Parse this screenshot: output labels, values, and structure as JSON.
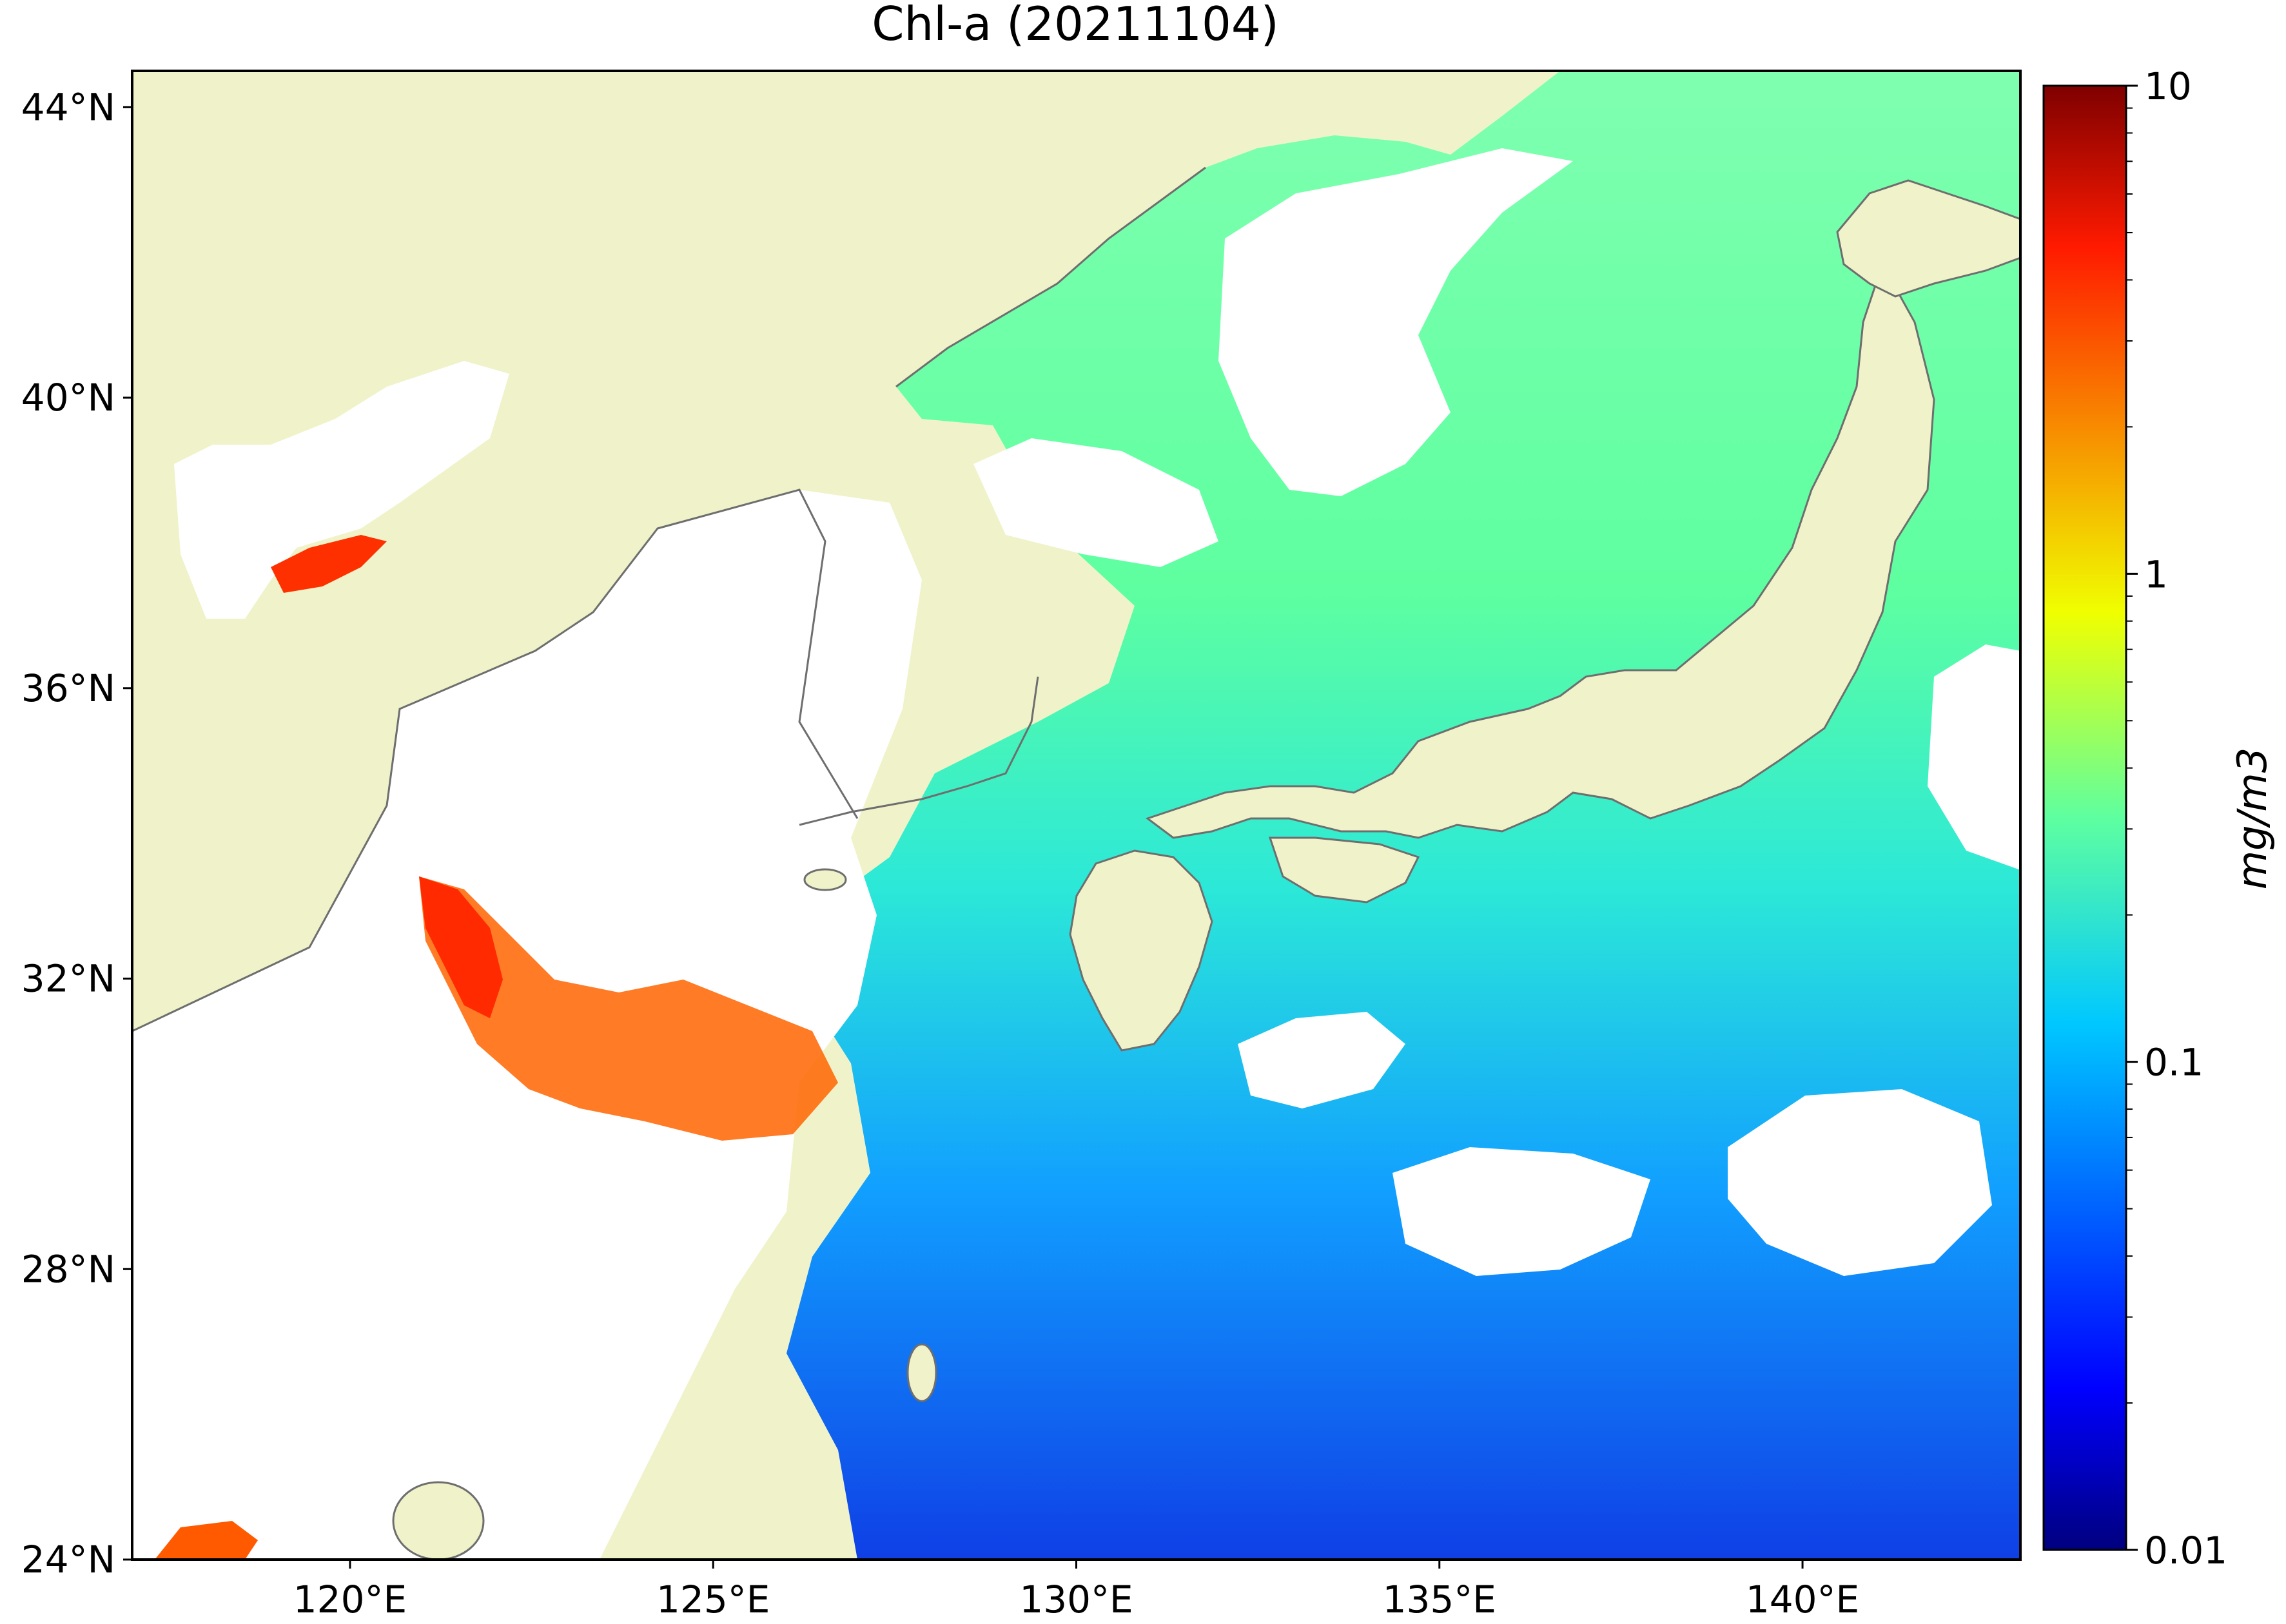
{
  "title": "Chl-a (20211104)",
  "map": {
    "extent": {
      "lon": [
        117.0,
        143.0
      ],
      "lat": [
        24.0,
        44.5
      ]
    },
    "x_ticks": [
      {
        "value": 120,
        "label": "120°E"
      },
      {
        "value": 125,
        "label": "125°E"
      },
      {
        "value": 130,
        "label": "130°E"
      },
      {
        "value": 135,
        "label": "135°E"
      },
      {
        "value": 140,
        "label": "140°E"
      }
    ],
    "y_ticks": [
      {
        "value": 24,
        "label": "24°N"
      },
      {
        "value": 28,
        "label": "28°N"
      },
      {
        "value": 32,
        "label": "32°N"
      },
      {
        "value": 36,
        "label": "36°N"
      },
      {
        "value": 40,
        "label": "40°N"
      },
      {
        "value": 44,
        "label": "44°N"
      }
    ],
    "colors": {
      "land": "#f0f3c9",
      "coastline": "#6e6e6e",
      "no_data": "#ffffff",
      "frame": "#000000"
    }
  },
  "colorbar": {
    "label": "mg/m3",
    "scale": "log",
    "range": [
      0.01,
      10
    ],
    "colormap": "jet",
    "ticks": [
      {
        "value": 10,
        "label": "10"
      },
      {
        "value": 1,
        "label": "1"
      },
      {
        "value": 0.1,
        "label": "0.1"
      },
      {
        "value": 0.01,
        "label": "0.01"
      }
    ]
  }
}
